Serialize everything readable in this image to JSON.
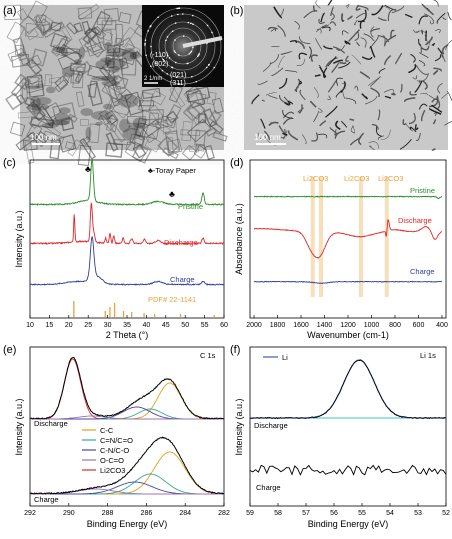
{
  "panels": {
    "a": {
      "letter": "(a)",
      "scale": "100 nm",
      "saed_scale": "2 1/nm",
      "saed_planes": [
        "(-110)",
        "(002)",
        "(021)",
        "(311)"
      ]
    },
    "b": {
      "letter": "(b)",
      "scale": "100 nm"
    },
    "c": {
      "letter": "(c)",
      "legend": "♣-Toray Paper",
      "club": "♣",
      "labels": [
        "Pristine",
        "Discharge",
        "Charge"
      ],
      "pdf": "PDF# 22-1141",
      "xlabel": "2 Theta (°)",
      "ylabel": "Intensity (a.u.)",
      "xticks": [
        "10",
        "15",
        "20",
        "25",
        "30",
        "35",
        "40",
        "45",
        "50",
        "55",
        "60"
      ]
    },
    "d": {
      "letter": "(d)",
      "labels": [
        "Pristine",
        "Discharge",
        "Charge"
      ],
      "annot": [
        "Li2CO3",
        "Li2CO3",
        "Li2CO3"
      ],
      "xlabel": "Wavenumber (cm-1)",
      "ylabel": "Absorbance (a.u.)",
      "xticks": [
        "2000",
        "1800",
        "1600",
        "1400",
        "1200",
        "1000",
        "800",
        "600",
        "400"
      ]
    },
    "e": {
      "letter": "(e)",
      "title": "C 1s",
      "labels": [
        "Discharge",
        "Charge"
      ],
      "legend": [
        "C-C",
        "C=N/C=O",
        "C-N/C-O",
        "O-C=O",
        "Li2CO3"
      ],
      "xlabel": "Binding Energy (eV)",
      "ylabel": "Intensity (a.u.)",
      "xticks": [
        "292",
        "290",
        "288",
        "286",
        "284",
        "282"
      ]
    },
    "f": {
      "letter": "(f)",
      "title": "Li 1s",
      "legend": "Li",
      "labels": [
        "Discharge",
        "Charge"
      ],
      "xlabel": "Binding Energy (eV)",
      "ylabel": "Intensity (a.u.)",
      "xticks": [
        "59",
        "58",
        "57",
        "56",
        "55",
        "54",
        "53",
        "52"
      ]
    }
  },
  "colors": {
    "pristine": "#2e8b2e",
    "discharge": "#e0262b",
    "charge": "#2f3fa0",
    "orange": "#e8a33a",
    "cc": "#e0a020",
    "cnco": "#3aa59a",
    "cnco2": "#4a4aa0",
    "oco": "#a070b0",
    "li2co3": "#d03030",
    "li": "#4a56b8",
    "cyan": "#3ec8c0"
  },
  "chart_data": [
    {
      "type": "line",
      "panel": "c",
      "xlabel": "2 Theta (°)",
      "ylabel": "Intensity (a.u.)",
      "xlim": [
        10,
        60
      ],
      "series": [
        {
          "name": "Pristine",
          "points": [
            [
              10,
              0.05
            ],
            [
              20,
              0.08
            ],
            [
              24,
              0.2
            ],
            [
              25.5,
              1
            ],
            [
              26.5,
              0.2
            ],
            [
              30,
              0.06
            ],
            [
              43,
              0.08
            ],
            [
              54.5,
              0.4
            ],
            [
              55.5,
              0.05
            ],
            [
              60,
              0.05
            ]
          ]
        },
        {
          "name": "Discharge",
          "points": [
            [
              10,
              0.05
            ],
            [
              20,
              0.15
            ],
            [
              21.3,
              0.7
            ],
            [
              22,
              0.2
            ],
            [
              25.5,
              0.8
            ],
            [
              26.5,
              0.3
            ],
            [
              30,
              0.3
            ],
            [
              31,
              0.4
            ],
            [
              32,
              0.2
            ],
            [
              35,
              0.15
            ],
            [
              40,
              0.1
            ],
            [
              54.5,
              0.2
            ],
            [
              60,
              0.05
            ]
          ]
        },
        {
          "name": "Charge",
          "points": [
            [
              10,
              0.05
            ],
            [
              20,
              0.1
            ],
            [
              25.5,
              1
            ],
            [
              27,
              0.2
            ],
            [
              30,
              0.1
            ],
            [
              43,
              0.07
            ],
            [
              54.5,
              0.2
            ],
            [
              60,
              0.05
            ]
          ]
        }
      ]
    },
    {
      "type": "line",
      "panel": "d",
      "xlabel": "Wavenumber (cm-1)",
      "ylabel": "Absorbance (a.u.)",
      "xlim": [
        2000,
        400
      ],
      "series": [
        {
          "name": "Pristine",
          "points": [
            [
              2000,
              0
            ],
            [
              1000,
              0
            ],
            [
              500,
              0
            ],
            [
              430,
              -0.1
            ],
            [
              400,
              0
            ]
          ]
        },
        {
          "name": "Discharge",
          "points": [
            [
              2000,
              0.15
            ],
            [
              1700,
              0.05
            ],
            [
              1550,
              -0.4
            ],
            [
              1430,
              -1
            ],
            [
              1300,
              -0.3
            ],
            [
              1000,
              -0.1
            ],
            [
              870,
              -0.6
            ],
            [
              840,
              -0.2
            ],
            [
              500,
              -0.05
            ],
            [
              460,
              -0.5
            ],
            [
              400,
              0
            ]
          ]
        },
        {
          "name": "Charge",
          "points": [
            [
              2000,
              0
            ],
            [
              1000,
              0
            ],
            [
              400,
              0
            ]
          ]
        }
      ]
    },
    {
      "type": "line",
      "panel": "e",
      "xlabel": "Binding Energy (eV)",
      "ylabel": "Intensity (a.u.)",
      "xlim": [
        292,
        282
      ],
      "series": [
        {
          "name": "Discharge",
          "points": [
            [
              292,
              0.02
            ],
            [
              290.5,
              0.2
            ],
            [
              289.8,
              1
            ],
            [
              289,
              0.3
            ],
            [
              287,
              0.1
            ],
            [
              286,
              0.25
            ],
            [
              284.8,
              0.7
            ],
            [
              284,
              0.2
            ],
            [
              283,
              0.02
            ],
            [
              282,
              0.01
            ]
          ]
        },
        {
          "name": "Charge",
          "points": [
            [
              292,
              0.02
            ],
            [
              289,
              0.1
            ],
            [
              287,
              0.2
            ],
            [
              286,
              0.35
            ],
            [
              284.8,
              0.75
            ],
            [
              284,
              0.2
            ],
            [
              283,
              0.03
            ],
            [
              282,
              0.01
            ]
          ]
        }
      ]
    },
    {
      "type": "line",
      "panel": "f",
      "xlabel": "Binding Energy (eV)",
      "ylabel": "Intensity (a.u.)",
      "xlim": [
        59,
        52
      ],
      "series": [
        {
          "name": "Discharge",
          "points": [
            [
              59,
              0
            ],
            [
              57,
              0.02
            ],
            [
              56,
              0.3
            ],
            [
              55.1,
              1
            ],
            [
              54,
              0.3
            ],
            [
              53,
              0.02
            ],
            [
              52,
              0
            ]
          ]
        },
        {
          "name": "Charge",
          "points": [
            [
              59,
              0
            ],
            [
              55.5,
              0.02
            ],
            [
              52,
              0
            ]
          ]
        }
      ]
    }
  ]
}
